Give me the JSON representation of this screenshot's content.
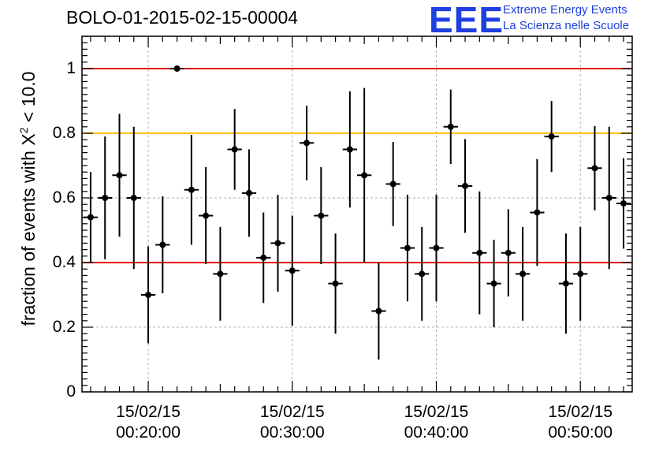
{
  "header": {
    "title": "BOLO-01-2015-02-15-00004",
    "logo_text": "EEE",
    "logo_line1": "Extreme Energy Events",
    "logo_line2": "La Scienza nelle Scuole"
  },
  "chart_data": {
    "type": "scatter",
    "title": "BOLO-01-2015-02-15-00004",
    "xlabel": "",
    "ylabel_pre": "fraction of events with X",
    "ylabel_sup": "2",
    "ylabel_post": " < 10.0",
    "xlim_min": [
      15.4,
      53.6
    ],
    "ylim": [
      0,
      1.1
    ],
    "yticks": [
      0,
      0.2,
      0.4,
      0.6,
      0.8,
      1
    ],
    "ytick_labels": [
      "0",
      "0.2",
      "0.4",
      "0.6",
      "0.8",
      "1"
    ],
    "xticks_min": [
      20,
      30,
      40,
      50
    ],
    "xtick_labels": [
      [
        "15/02/15",
        "00:20:00"
      ],
      [
        "15/02/15",
        "00:30:00"
      ],
      [
        "15/02/15",
        "00:40:00"
      ],
      [
        "15/02/15",
        "00:50:00"
      ]
    ],
    "grid": true,
    "reference_lines": [
      {
        "y": 1.0,
        "color": "#e00000"
      },
      {
        "y": 0.8,
        "color": "#ffc000"
      },
      {
        "y": 0.4,
        "color": "#e00000"
      }
    ],
    "bin_width_min": 1,
    "points": [
      {
        "x": 16.0,
        "y": 0.54,
        "yerr": 0.14
      },
      {
        "x": 17.0,
        "y": 0.6,
        "yerr": 0.19
      },
      {
        "x": 18.0,
        "y": 0.67,
        "yerr": 0.19
      },
      {
        "x": 19.0,
        "y": 0.6,
        "yerr": 0.22
      },
      {
        "x": 20.0,
        "y": 0.3,
        "yerr": 0.15
      },
      {
        "x": 21.0,
        "y": 0.455,
        "yerr": 0.15
      },
      {
        "x": 22.0,
        "y": 1.0,
        "yerr": 0
      },
      {
        "x": 23.0,
        "y": 0.625,
        "yerr": 0.17
      },
      {
        "x": 24.0,
        "y": 0.545,
        "yerr": 0.15
      },
      {
        "x": 25.0,
        "y": 0.365,
        "yerr": 0.145
      },
      {
        "x": 26.0,
        "y": 0.75,
        "yerr": 0.125
      },
      {
        "x": 27.0,
        "y": 0.615,
        "yerr": 0.135
      },
      {
        "x": 28.0,
        "y": 0.415,
        "yerr": 0.14
      },
      {
        "x": 29.0,
        "y": 0.46,
        "yerr": 0.15
      },
      {
        "x": 30.0,
        "y": 0.375,
        "yerr": 0.17
      },
      {
        "x": 31.0,
        "y": 0.77,
        "yerr": 0.115
      },
      {
        "x": 32.0,
        "y": 0.545,
        "yerr": 0.15
      },
      {
        "x": 33.0,
        "y": 0.335,
        "yerr": 0.155
      },
      {
        "x": 34.0,
        "y": 0.75,
        "yerr": 0.18
      },
      {
        "x": 35.0,
        "y": 0.67,
        "yerr": 0.27
      },
      {
        "x": 36.0,
        "y": 0.25,
        "yerr": 0.15
      },
      {
        "x": 37.0,
        "y": 0.643,
        "yerr": 0.13
      },
      {
        "x": 38.0,
        "y": 0.445,
        "yerr": 0.165
      },
      {
        "x": 39.0,
        "y": 0.365,
        "yerr": 0.145
      },
      {
        "x": 40.0,
        "y": 0.445,
        "yerr": 0.165
      },
      {
        "x": 41.0,
        "y": 0.82,
        "yerr": 0.115
      },
      {
        "x": 42.0,
        "y": 0.637,
        "yerr": 0.145
      },
      {
        "x": 43.0,
        "y": 0.43,
        "yerr": 0.19
      },
      {
        "x": 44.0,
        "y": 0.335,
        "yerr": 0.135
      },
      {
        "x": 45.0,
        "y": 0.43,
        "yerr": 0.135
      },
      {
        "x": 46.0,
        "y": 0.365,
        "yerr": 0.145
      },
      {
        "x": 47.0,
        "y": 0.555,
        "yerr": 0.165
      },
      {
        "x": 48.0,
        "y": 0.79,
        "yerr": 0.11
      },
      {
        "x": 49.0,
        "y": 0.335,
        "yerr": 0.155
      },
      {
        "x": 50.0,
        "y": 0.365,
        "yerr": 0.145
      },
      {
        "x": 51.0,
        "y": 0.692,
        "yerr": 0.13
      },
      {
        "x": 52.0,
        "y": 0.6,
        "yerr": 0.22
      },
      {
        "x": 53.0,
        "y": 0.583,
        "yerr": 0.14
      }
    ]
  }
}
